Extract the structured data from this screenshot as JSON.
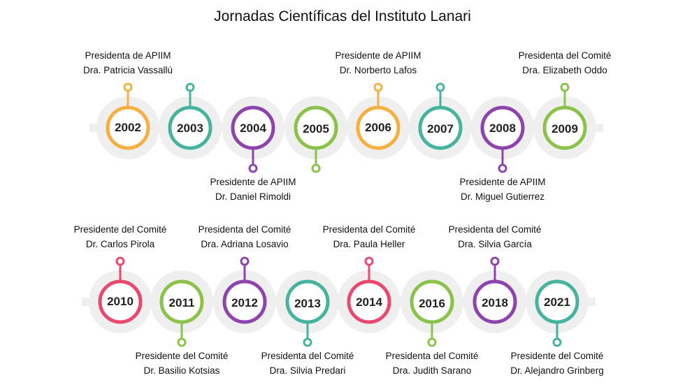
{
  "title": "Jornadas Científicas del Instituto Lanari",
  "colors": {
    "orange": "#F5B041",
    "teal": "#45B39D",
    "purple": "#8E44AD",
    "green": "#8BC34A",
    "pink": "#E8496E",
    "band": "#EFEFEF"
  },
  "rows": [
    {
      "items": [
        {
          "year": "2002",
          "color": "orange",
          "stem": "up",
          "role": "Presidenta de APIIM",
          "name": "Dra. Patricia Vassallú"
        },
        {
          "year": "2003",
          "color": "teal",
          "stem": "up",
          "role": "",
          "name": ""
        },
        {
          "year": "2004",
          "color": "purple",
          "stem": "down",
          "role": "Presidente de APIIM",
          "name": "Dr. Daniel Rimoldi"
        },
        {
          "year": "2005",
          "color": "green",
          "stem": "down",
          "role": "",
          "name": ""
        },
        {
          "year": "2006",
          "color": "orange",
          "stem": "up",
          "role": "Presidente de APIIM",
          "name": "Dr. Norberto Lafos"
        },
        {
          "year": "2007",
          "color": "teal",
          "stem": "up",
          "role": "",
          "name": ""
        },
        {
          "year": "2008",
          "color": "purple",
          "stem": "down",
          "role": "Presidente de APIIM",
          "name": "Dr. Miguel Gutierrez"
        },
        {
          "year": "2009",
          "color": "green",
          "stem": "up",
          "role": "Presidenta del Comité",
          "name": "Dra. Elizabeth Oddo"
        }
      ]
    },
    {
      "items": [
        {
          "year": "2010",
          "color": "pink",
          "stem": "up",
          "role": "Presidente del Comité",
          "name": "Dr. Carlos Pirola"
        },
        {
          "year": "2011",
          "color": "green",
          "stem": "down",
          "role": "Presidente del Comité",
          "name": "Dr. Basilio Kotsias"
        },
        {
          "year": "2012",
          "color": "purple",
          "stem": "up",
          "role": "Presidenta del Comité",
          "name": "Dra. Adriana Losavio"
        },
        {
          "year": "2013",
          "color": "teal",
          "stem": "down",
          "role": "Presidenta del Comité",
          "name": "Dra. Silvia Predari"
        },
        {
          "year": "2014",
          "color": "pink",
          "stem": "up",
          "role": "Presidenta del Comité",
          "name": "Dra. Paula Heller"
        },
        {
          "year": "2016",
          "color": "green",
          "stem": "down",
          "role": "Presidenta del Comité",
          "name": "Dra. Judith Sarano"
        },
        {
          "year": "2018",
          "color": "purple",
          "stem": "up",
          "role": "Presidenta del Comité",
          "name": "Dra. Silvia García"
        },
        {
          "year": "2021",
          "color": "teal",
          "stem": "down",
          "role": "Presidente del Comité",
          "name": "Dr. Alejandro Grinberg"
        }
      ]
    }
  ]
}
